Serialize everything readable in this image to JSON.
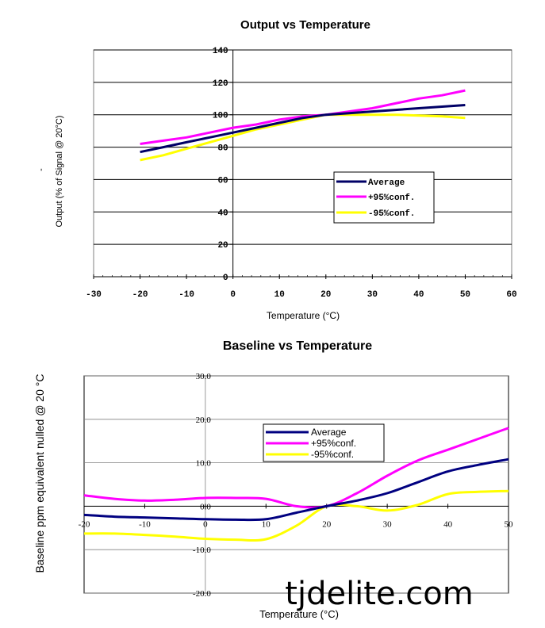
{
  "chart_data": [
    {
      "type": "line",
      "title": "Output vs Temperature",
      "xlabel": "Temperature (°C)",
      "ylabel": "Output (% of Signal @ 20°C)",
      "ylabel_prefix": "-",
      "xlim": [
        -30,
        60
      ],
      "ylim": [
        0,
        140
      ],
      "xticks": [
        "-30",
        "-20",
        "-10",
        "0",
        "10",
        "20",
        "30",
        "40",
        "50",
        "60"
      ],
      "yticks": [
        "0",
        "20",
        "40",
        "60",
        "80",
        "100",
        "120",
        "140"
      ],
      "grid": "horizontal",
      "legend_position": "lower-right",
      "series": [
        {
          "name": "Average",
          "color": "#000066",
          "x": [
            -20,
            -15,
            -10,
            -5,
            0,
            5,
            10,
            15,
            20,
            25,
            30,
            35,
            40,
            45,
            50
          ],
          "y": [
            77,
            80,
            83,
            86,
            89,
            92,
            95,
            98,
            100,
            101,
            102,
            103,
            104,
            105,
            106
          ]
        },
        {
          "name": "+95%conf.",
          "color": "#ff00ff",
          "x": [
            -20,
            -15,
            -10,
            -5,
            0,
            5,
            10,
            15,
            20,
            25,
            30,
            35,
            40,
            45,
            50
          ],
          "y": [
            82,
            84,
            86,
            89,
            92,
            94,
            97,
            99,
            100,
            102,
            104,
            107,
            110,
            112,
            115
          ]
        },
        {
          "name": "-95%conf.",
          "color": "#ffff00",
          "x": [
            -20,
            -15,
            -10,
            -5,
            0,
            5,
            10,
            15,
            20,
            25,
            30,
            35,
            40,
            45,
            50
          ],
          "y": [
            72,
            75,
            79,
            83,
            87,
            91,
            94,
            97,
            100,
            100,
            100,
            100,
            99.5,
            99,
            98
          ]
        }
      ]
    },
    {
      "type": "line",
      "title": "Baseline vs Temperature",
      "xlabel": "Temperature (°C)",
      "ylabel": "Baseline ppm equivalent nulled @ 20 °C",
      "xlim": [
        -20,
        50
      ],
      "ylim": [
        -20,
        30
      ],
      "xticks": [
        "-20",
        "-10",
        "0",
        "10",
        "20",
        "30",
        "40",
        "50"
      ],
      "yticks": [
        "30.0",
        "20.0",
        "10.0",
        "0.0",
        "-10.0",
        "-20.0"
      ],
      "grid": "both",
      "legend_position": "center-top",
      "series": [
        {
          "name": "Average",
          "color": "#000080",
          "x": [
            -20,
            -15,
            -10,
            -5,
            0,
            5,
            10,
            15,
            20,
            25,
            30,
            35,
            40,
            45,
            50
          ],
          "y": [
            -2,
            -2.4,
            -2.6,
            -2.8,
            -3,
            -3.1,
            -3,
            -1.5,
            0,
            1.3,
            3,
            5.5,
            8,
            9.5,
            10.8
          ]
        },
        {
          "name": "+95%conf.",
          "color": "#ff00ff",
          "x": [
            -20,
            -15,
            -10,
            -5,
            0,
            5,
            10,
            15,
            20,
            25,
            30,
            35,
            40,
            45,
            50
          ],
          "y": [
            2.5,
            1.7,
            1.3,
            1.5,
            1.9,
            1.9,
            1.7,
            0,
            0,
            3,
            7,
            10.5,
            13,
            15.5,
            18
          ]
        },
        {
          "name": "-95%conf.",
          "color": "#ffff00",
          "x": [
            -20,
            -15,
            -10,
            -5,
            0,
            5,
            10,
            15,
            20,
            25,
            30,
            35,
            40,
            45,
            50
          ],
          "y": [
            -6.3,
            -6.3,
            -6.6,
            -7,
            -7.5,
            -7.7,
            -7.6,
            -4.5,
            0,
            0,
            -1,
            0.3,
            2.8,
            3.3,
            3.5
          ]
        }
      ]
    }
  ],
  "watermark": "tjdelite.com"
}
